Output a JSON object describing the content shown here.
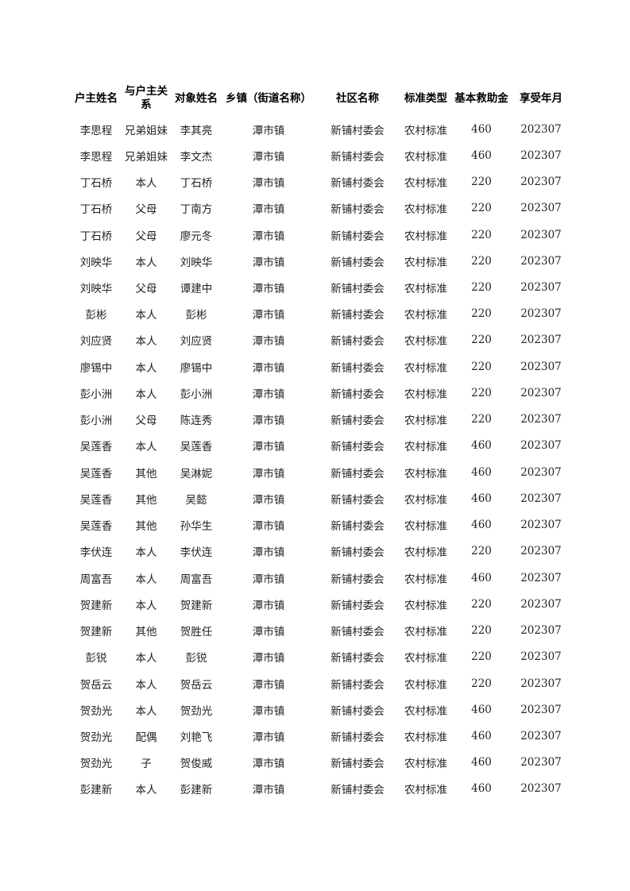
{
  "headers": [
    "户主姓名",
    "与户主关系",
    "对象姓名",
    "乡镇（街道名称）",
    "社区名称",
    "标准类型",
    "基本救助金",
    "享受年月"
  ],
  "rows": [
    [
      "李思程",
      "兄弟姐妹",
      "李其亮",
      "潭市镇",
      "新铺村委会",
      "农村标准",
      "460",
      "202307"
    ],
    [
      "李思程",
      "兄弟姐妹",
      "李文杰",
      "潭市镇",
      "新铺村委会",
      "农村标准",
      "460",
      "202307"
    ],
    [
      "丁石桥",
      "本人",
      "丁石桥",
      "潭市镇",
      "新铺村委会",
      "农村标准",
      "220",
      "202307"
    ],
    [
      "丁石桥",
      "父母",
      "丁南方",
      "潭市镇",
      "新铺村委会",
      "农村标准",
      "220",
      "202307"
    ],
    [
      "丁石桥",
      "父母",
      "廖元冬",
      "潭市镇",
      "新铺村委会",
      "农村标准",
      "220",
      "202307"
    ],
    [
      "刘映华",
      "本人",
      "刘映华",
      "潭市镇",
      "新铺村委会",
      "农村标准",
      "220",
      "202307"
    ],
    [
      "刘映华",
      "父母",
      "谭建中",
      "潭市镇",
      "新铺村委会",
      "农村标准",
      "220",
      "202307"
    ],
    [
      "彭彬",
      "本人",
      "彭彬",
      "潭市镇",
      "新铺村委会",
      "农村标准",
      "220",
      "202307"
    ],
    [
      "刘应贤",
      "本人",
      "刘应贤",
      "潭市镇",
      "新铺村委会",
      "农村标准",
      "220",
      "202307"
    ],
    [
      "廖锡中",
      "本人",
      "廖锡中",
      "潭市镇",
      "新铺村委会",
      "农村标准",
      "220",
      "202307"
    ],
    [
      "彭小洲",
      "本人",
      "彭小洲",
      "潭市镇",
      "新铺村委会",
      "农村标准",
      "220",
      "202307"
    ],
    [
      "彭小洲",
      "父母",
      "陈连秀",
      "潭市镇",
      "新铺村委会",
      "农村标准",
      "220",
      "202307"
    ],
    [
      "吴莲香",
      "本人",
      "吴莲香",
      "潭市镇",
      "新铺村委会",
      "农村标准",
      "460",
      "202307"
    ],
    [
      "吴莲香",
      "其他",
      "吴淋妮",
      "潭市镇",
      "新铺村委会",
      "农村标准",
      "460",
      "202307"
    ],
    [
      "吴莲香",
      "其他",
      "吴懿",
      "潭市镇",
      "新铺村委会",
      "农村标准",
      "460",
      "202307"
    ],
    [
      "吴莲香",
      "其他",
      "孙华生",
      "潭市镇",
      "新铺村委会",
      "农村标准",
      "460",
      "202307"
    ],
    [
      "李伏连",
      "本人",
      "李伏连",
      "潭市镇",
      "新铺村委会",
      "农村标准",
      "220",
      "202307"
    ],
    [
      "周富吾",
      "本人",
      "周富吾",
      "潭市镇",
      "新铺村委会",
      "农村标准",
      "460",
      "202307"
    ],
    [
      "贺建新",
      "本人",
      "贺建新",
      "潭市镇",
      "新铺村委会",
      "农村标准",
      "220",
      "202307"
    ],
    [
      "贺建新",
      "其他",
      "贺胜任",
      "潭市镇",
      "新铺村委会",
      "农村标准",
      "220",
      "202307"
    ],
    [
      "彭锐",
      "本人",
      "彭锐",
      "潭市镇",
      "新铺村委会",
      "农村标准",
      "220",
      "202307"
    ],
    [
      "贺岳云",
      "本人",
      "贺岳云",
      "潭市镇",
      "新铺村委会",
      "农村标准",
      "220",
      "202307"
    ],
    [
      "贺劲光",
      "本人",
      "贺劲光",
      "潭市镇",
      "新铺村委会",
      "农村标准",
      "460",
      "202307"
    ],
    [
      "贺劲光",
      "配偶",
      "刘艳飞",
      "潭市镇",
      "新铺村委会",
      "农村标准",
      "460",
      "202307"
    ],
    [
      "贺劲光",
      "子",
      "贺俊威",
      "潭市镇",
      "新铺村委会",
      "农村标准",
      "460",
      "202307"
    ],
    [
      "彭建新",
      "本人",
      "彭建新",
      "潭市镇",
      "新铺村委会",
      "农村标准",
      "460",
      "202307"
    ]
  ]
}
